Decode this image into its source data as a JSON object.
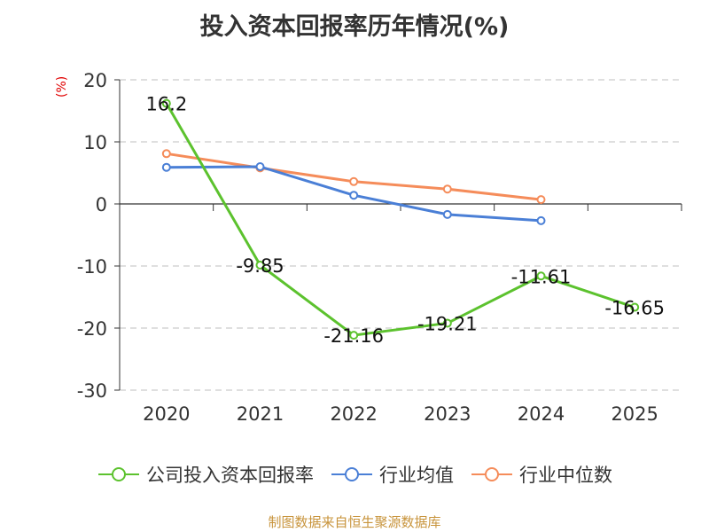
{
  "title": "投入资本回报率历年情况(%)",
  "footer": "制图数据来自恒生聚源数据库",
  "chart_data": {
    "type": "line",
    "title": "投入资本回报率历年情况(%)",
    "ylabel": "(%)",
    "categories": [
      "2020",
      "2021",
      "2022",
      "2023",
      "2024",
      "2025"
    ],
    "ylim": [
      -30,
      20
    ],
    "yticks": [
      20,
      10,
      0,
      -10,
      -20,
      -30
    ],
    "grid": true,
    "legend_position": "bottom",
    "series": [
      {
        "name": "公司投入资本回报率",
        "color": "#5cc22e",
        "values": [
          16.2,
          -9.85,
          -21.16,
          -19.21,
          -11.61,
          -16.65
        ],
        "labels": [
          "16.2",
          "-9.85",
          "-21.16",
          "-19.21",
          "-11.61",
          "-16.65"
        ]
      },
      {
        "name": "行业均值",
        "color": "#4a7fd6",
        "values": [
          5.9,
          6.0,
          1.4,
          -1.7,
          -2.7,
          null
        ]
      },
      {
        "name": "行业中位数",
        "color": "#f58c5a",
        "values": [
          8.1,
          5.8,
          3.6,
          2.4,
          0.7,
          null
        ]
      }
    ]
  }
}
